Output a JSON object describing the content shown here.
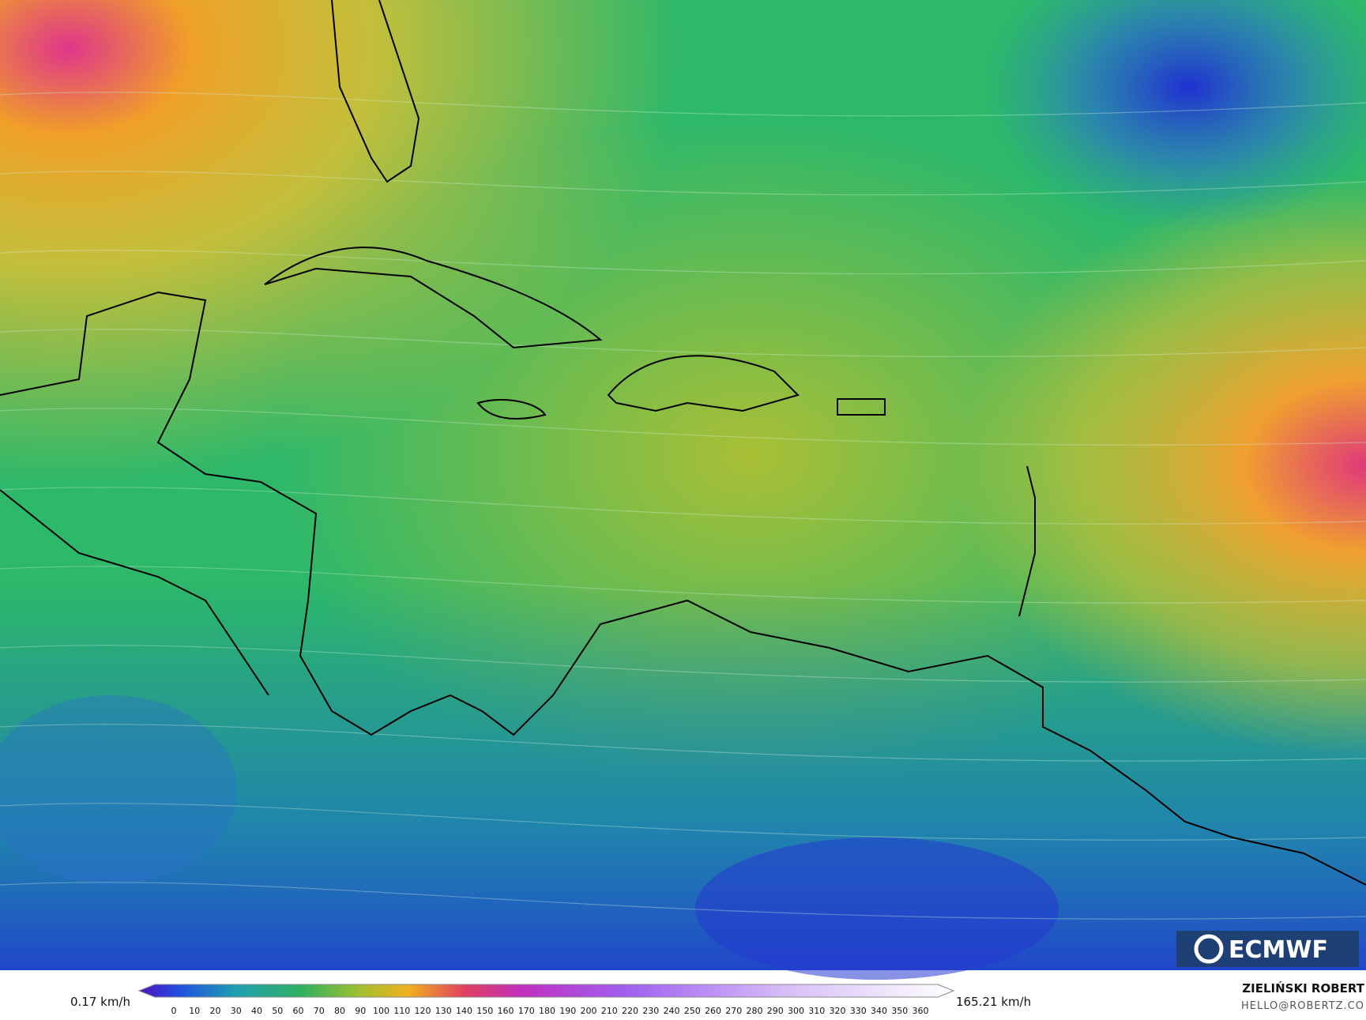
{
  "map": {
    "logo": "ECMWF",
    "legend": {
      "min_label": "0.17 km/h",
      "max_label": "165.21 km/h",
      "ticks": [
        0,
        10,
        20,
        30,
        40,
        50,
        60,
        70,
        80,
        90,
        100,
        110,
        120,
        130,
        140,
        150,
        160,
        170,
        180,
        190,
        200,
        210,
        220,
        230,
        240,
        250,
        260,
        270,
        280,
        290,
        300,
        310,
        320,
        330,
        340,
        350,
        360
      ]
    },
    "credits": {
      "author": "ZIELIŃSKI ROBERT",
      "contact": "HELLO@ROBERTZ.CO"
    }
  }
}
